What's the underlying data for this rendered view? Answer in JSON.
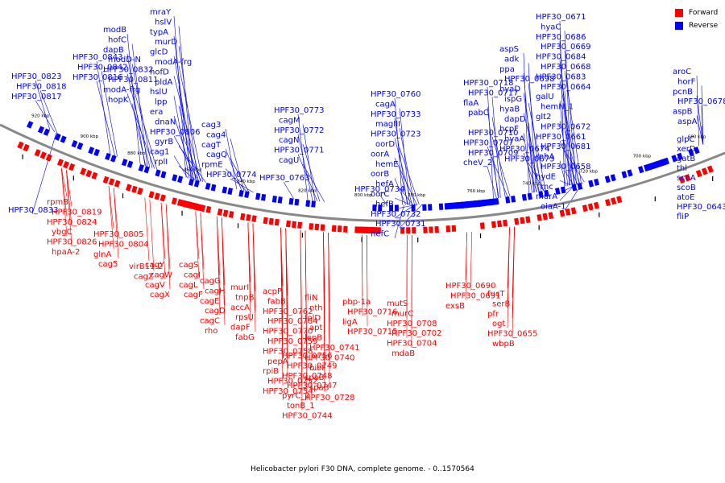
{
  "caption": "Helicobacter pylori F30 DNA, complete genome. - 0..1570564",
  "legend": [
    {
      "label": "Forward",
      "color": "#ff0000"
    },
    {
      "label": "Reverse",
      "color": "#0000ff"
    }
  ],
  "colors": {
    "forward": "#ff0000",
    "reverse": "#0000ff",
    "backbone": "#888888"
  },
  "kbp_ticks": [
    "920 kbp",
    "900 kbp",
    "880 kbp",
    "860 kbp",
    "840 kbp",
    "820 kbp",
    "800 kbp",
    "780 kbp",
    "760 kbp",
    "740 kbp",
    "720 kbp",
    "700 kbp",
    "680 kbp"
  ],
  "reverse_labels": [
    "HPF30_0823",
    "HPF30_0818",
    "HPF30_0817",
    "HPF30_0843",
    "HPF30_0842",
    "HPF30_0816",
    "modB",
    "hofC",
    "dapB",
    "modD-N",
    "HPF30_0832",
    "HPF30_0811",
    "modA-frg",
    "hopK",
    "mraY",
    "hslV",
    "typA",
    "murD",
    "glcD",
    "modA-frg",
    "hofD",
    "pldA",
    "hslU",
    "lpp",
    "era",
    "dnaN",
    "HPF30_0806",
    "gyrB",
    "cag1",
    "rplI",
    "cag3",
    "cag4",
    "cagT",
    "cagQ",
    "rpmE",
    "HPF30_0774",
    "HPF30_0773",
    "cagM",
    "HPF30_0772",
    "cagN",
    "HPF30_0771",
    "cagU",
    "HPF30_0763",
    "HPF30_0760",
    "cagA",
    "HPF30_0733",
    "magIII",
    "HPF30_0723",
    "oorD",
    "oorA",
    "hemE",
    "oorB",
    "hefA",
    "oorC",
    "hefB",
    "HPF30_0732",
    "HPF30_0731",
    "hefC",
    "HPF30_0734",
    "HPF30_0718",
    "HPF30_0717",
    "flaA",
    "pabC",
    "HPF30_0833",
    "HPF30_0710",
    "HPF30_0707",
    "HPF30_0709",
    "cheV_2",
    "aspS",
    "adk",
    "ppa",
    "HPF30_0698",
    "hyaD",
    "ispG",
    "hyaB",
    "dapD",
    "hcpF",
    "hyaA",
    "HPF30_0674",
    "HPF30_0673",
    "HPF30_0671",
    "hyaC",
    "HPF30_0686",
    "HPF30_0669",
    "HPF30_0684",
    "HPF30_0668",
    "HPF30_0683",
    "HPF30_0664",
    "galU",
    "hemN_1",
    "glt2",
    "HPF30_0672",
    "HPF30_0661",
    "HPF30_0681",
    "rnhA",
    "HPF30_0658",
    "hydE",
    "rnc",
    "murA",
    "oiaA-1",
    "aroC",
    "horF",
    "pcnB",
    "HPF30_0678",
    "aspB",
    "aspA",
    "glpC",
    "xerD",
    "gatB",
    "thl",
    "scoA",
    "scoB",
    "atoE",
    "HPF30_0643",
    "fliP"
  ],
  "forward_labels": [
    "rpmB",
    "HPF30_0819",
    "HPF30_0824",
    "ybgC",
    "HPF30_0826",
    "hpaA-2",
    "HPF30_0805",
    "HPF30_0804",
    "glnA",
    "cag5",
    "virB11-2",
    "cagZ",
    "cagY",
    "cagW",
    "cagV",
    "cagX",
    "cagS",
    "cagI",
    "cagL",
    "cagF",
    "cagG",
    "cagH",
    "cagE",
    "cagD",
    "cagC",
    "rho",
    "murI",
    "tnpB",
    "accA",
    "rpsU",
    "dapF",
    "fabG",
    "acpP",
    "fabB",
    "HPF30_0762",
    "HPF30_0764",
    "HPF30_0770",
    "HPF30_0759",
    "HPF30_0758",
    "pepA",
    "rpiB",
    "HPF30_0752",
    "HPF30_0754",
    "HPF30_0756",
    "HPF30_0749",
    "HPF30_0748",
    "HPF30_0747",
    "pyrC_2",
    "tonB_1",
    "HPF30_0744",
    "fliN",
    "nth",
    "folD",
    "apt",
    "lepB",
    "HPF30_0741",
    "HPF30_0740",
    "bioF",
    "spaB",
    "spaB",
    "HPF30_0728",
    "pbp-1a",
    "HPF30_0716",
    "ligA",
    "HPF30_0715",
    "mutS",
    "murC",
    "HPF30_0708",
    "HPF30_0702",
    "HPF30_0704",
    "mdaB",
    "HPF30_0690",
    "HPF30_0691",
    "exsB",
    "fucT",
    "serB",
    "pfr",
    "ogt",
    "HPF30_0655",
    "wbpB"
  ]
}
